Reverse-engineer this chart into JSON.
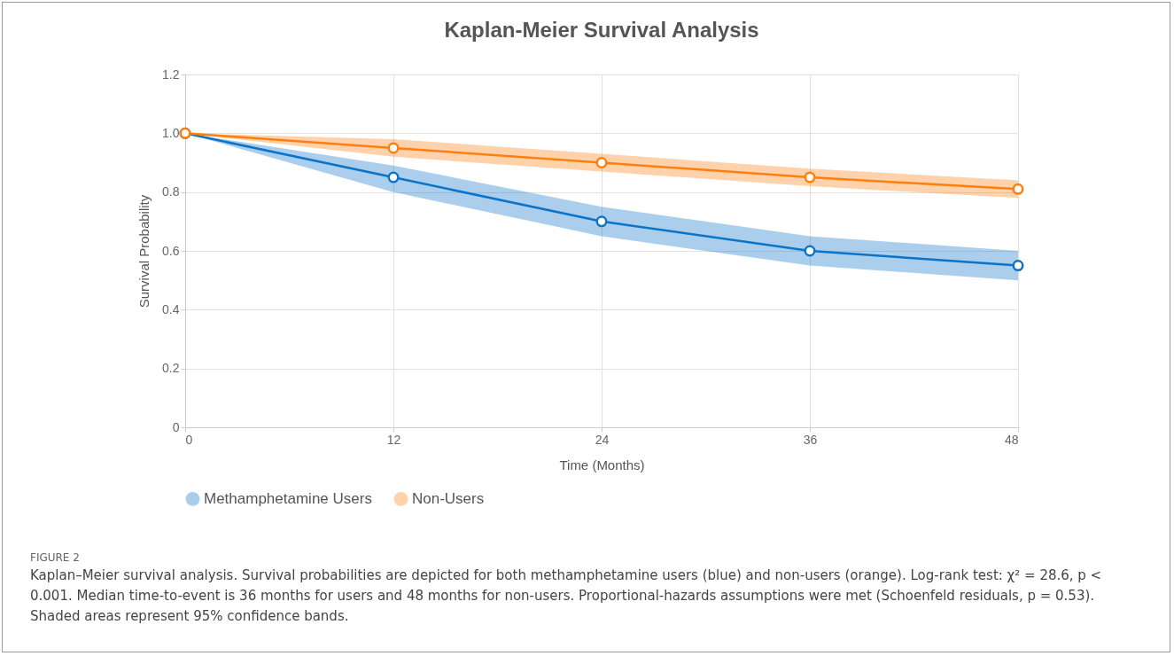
{
  "chart_data": {
    "type": "line",
    "title": "Kaplan-Meier Survival Analysis",
    "xlabel": "Time (Months)",
    "ylabel": "Survival Probability",
    "x": [
      0,
      12,
      24,
      36,
      48
    ],
    "series": [
      {
        "name": "Methamphetamine Users",
        "color": "#0b74c8",
        "values": [
          1,
          0.85,
          0.7,
          0.6,
          0.55
        ],
        "lower": [
          1,
          0.8,
          0.65,
          0.55,
          0.5
        ],
        "upper": [
          1,
          0.89,
          0.75,
          0.65,
          0.6
        ]
      },
      {
        "name": "Non-Users",
        "color": "#ff7f0e",
        "values": [
          1,
          0.95,
          0.9,
          0.85,
          0.81
        ],
        "lower": [
          1,
          0.92,
          0.87,
          0.82,
          0.78
        ],
        "upper": [
          1,
          0.98,
          0.93,
          0.88,
          0.84
        ]
      }
    ],
    "xlim": [
      0,
      48
    ],
    "xticks": [
      0,
      12,
      24,
      36,
      48
    ],
    "ylim": [
      0,
      1.2
    ],
    "yticks": [
      0,
      0.2,
      0.4,
      0.6,
      0.8,
      {
        "value": 1,
        "label": "1.0"
      },
      1.2
    ],
    "grid": true,
    "legend": "bottom",
    "marker": "circle",
    "line_style": "solid",
    "annotations": [
      "FIGURE 2",
      "Kaplan–Meier survival analysis. Survival probabilities are depicted for both methamphetamine users (blue) and non-users (orange). Log-rank test: χ² = 28.6, p < 0.001. Median time-to-event is 36 months for users and 48 months for non-users. Proportional-hazards assumptions were met (Schoenfeld residuals, p = 0.53). Shaded areas represent 95% confidence bands."
    ]
  }
}
